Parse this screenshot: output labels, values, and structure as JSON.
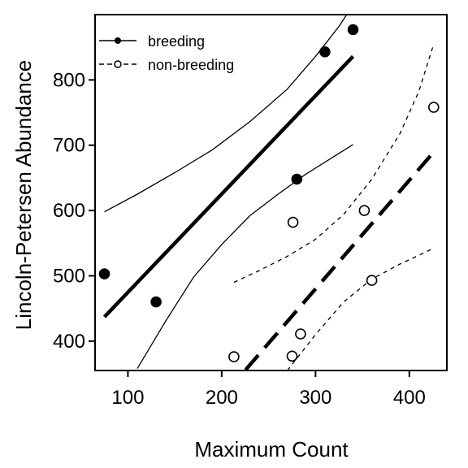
{
  "chart_data": {
    "type": "scatter",
    "xlabel": "Maximum Count",
    "ylabel": "Lincoln-Petersen Abundance",
    "xlim": [
      65,
      440
    ],
    "ylim": [
      355,
      900
    ],
    "xticks": [
      100,
      200,
      300,
      400
    ],
    "yticks": [
      400,
      500,
      600,
      700,
      800
    ],
    "grid": false,
    "legend_position": "top-left",
    "series": [
      {
        "name": "breeding",
        "marker": "filled-circle",
        "line_style": "solid",
        "points": [
          {
            "x": 75,
            "y": 503
          },
          {
            "x": 130,
            "y": 460
          },
          {
            "x": 280,
            "y": 648
          },
          {
            "x": 310,
            "y": 843
          },
          {
            "x": 340,
            "y": 877
          }
        ],
        "fit": [
          [
            75,
            437
          ],
          [
            340,
            836
          ]
        ],
        "ci_upper": [
          [
            75,
            598
          ],
          [
            110,
            625
          ],
          [
            150,
            658
          ],
          [
            190,
            693
          ],
          [
            230,
            736
          ],
          [
            270,
            786
          ],
          [
            300,
            836
          ],
          [
            325,
            882
          ],
          [
            335,
            904
          ]
        ],
        "ci_lower": [
          [
            110,
            358
          ],
          [
            140,
            430
          ],
          [
            170,
            498
          ],
          [
            200,
            548
          ],
          [
            230,
            592
          ],
          [
            260,
            625
          ],
          [
            290,
            656
          ],
          [
            320,
            683
          ],
          [
            340,
            701
          ]
        ]
      },
      {
        "name": "non-breeding",
        "marker": "open-circle",
        "line_style": "dashed",
        "points": [
          {
            "x": 213,
            "y": 376
          },
          {
            "x": 275,
            "y": 377
          },
          {
            "x": 276,
            "y": 582
          },
          {
            "x": 284,
            "y": 411
          },
          {
            "x": 352,
            "y": 600
          },
          {
            "x": 360,
            "y": 493
          },
          {
            "x": 426,
            "y": 758
          }
        ],
        "fit": [
          [
            205,
            322
          ],
          [
            425,
            688
          ]
        ],
        "ci_upper": [
          [
            213,
            490
          ],
          [
            240,
            508
          ],
          [
            270,
            530
          ],
          [
            300,
            556
          ],
          [
            330,
            594
          ],
          [
            360,
            648
          ],
          [
            390,
            718
          ],
          [
            410,
            782
          ],
          [
            426,
            855
          ]
        ],
        "ci_lower": [
          [
            270,
            355
          ],
          [
            300,
            410
          ],
          [
            330,
            460
          ],
          [
            360,
            495
          ],
          [
            390,
            518
          ],
          [
            420,
            538
          ],
          [
            426,
            543
          ]
        ]
      }
    ]
  }
}
